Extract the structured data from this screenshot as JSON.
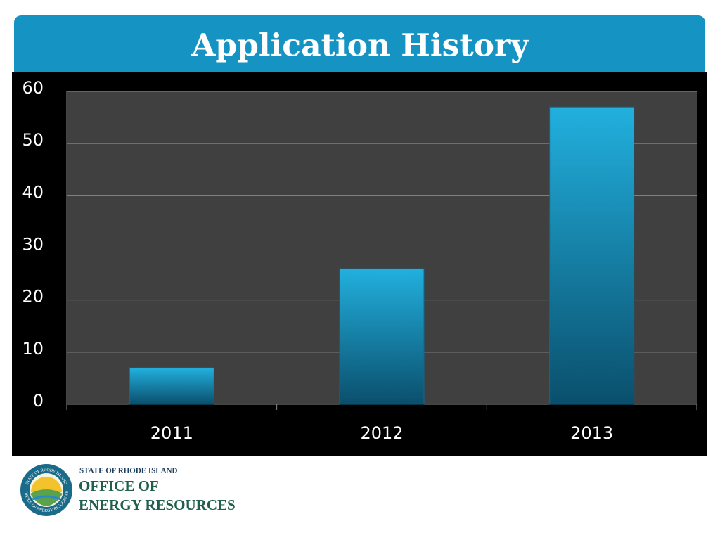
{
  "chart_data": {
    "type": "bar",
    "title": "Application History",
    "categories": [
      "2011",
      "2012",
      "2013"
    ],
    "values": [
      7,
      26,
      57
    ],
    "color": "#22b0de",
    "ylim": [
      0,
      60
    ],
    "yticks": [
      0,
      10,
      20,
      30,
      40,
      50,
      60
    ],
    "grid": true
  },
  "logo": {
    "seal_top": "STATE OF RHODE ISLAND",
    "seal_bottom": "OFFICE OF ENERGY RESOURCES",
    "line1": "STATE OF RHODE ISLAND",
    "line2": "OFFICE OF",
    "line3": "ENERGY RESOURCES"
  }
}
